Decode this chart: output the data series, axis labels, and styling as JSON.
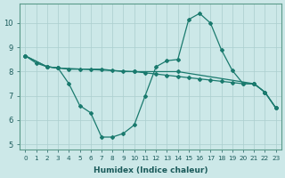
{
  "xlabel": "Humidex (Indice chaleur)",
  "ylabel": "",
  "bg_color": "#cce8e8",
  "grid_color": "#aacece",
  "line_color": "#1a7a6e",
  "xlim": [
    -0.5,
    23.5
  ],
  "ylim": [
    4.8,
    10.8
  ],
  "xticks": [
    0,
    1,
    2,
    3,
    4,
    5,
    6,
    7,
    8,
    9,
    10,
    11,
    12,
    13,
    14,
    15,
    16,
    17,
    18,
    19,
    20,
    21,
    22,
    23
  ],
  "yticks": [
    5,
    6,
    7,
    8,
    9,
    10
  ],
  "line1_x": [
    0,
    1,
    2,
    3,
    4,
    5,
    6,
    7,
    8,
    9,
    10,
    11,
    12,
    13,
    14,
    15,
    16,
    17,
    18,
    19,
    20,
    21,
    22,
    23
  ],
  "line1_y": [
    8.65,
    8.35,
    8.2,
    8.15,
    7.5,
    6.6,
    6.3,
    5.3,
    5.3,
    5.45,
    5.8,
    7.0,
    8.2,
    8.45,
    8.5,
    10.15,
    10.4,
    10.0,
    8.9,
    8.05,
    7.5,
    7.5,
    7.15,
    6.5
  ],
  "line2_x": [
    0,
    2,
    3,
    4,
    5,
    6,
    7,
    8,
    9,
    10,
    11,
    12,
    13,
    14,
    15,
    16,
    17,
    18,
    19,
    20,
    21,
    22,
    23
  ],
  "line2_y": [
    8.65,
    8.2,
    8.15,
    8.1,
    8.1,
    8.1,
    8.1,
    8.05,
    8.0,
    8.0,
    7.95,
    7.9,
    7.85,
    7.8,
    7.75,
    7.7,
    7.65,
    7.6,
    7.55,
    7.5,
    7.5,
    7.15,
    6.5
  ],
  "line3_x": [
    0,
    2,
    3,
    10,
    14,
    21,
    22,
    23
  ],
  "line3_y": [
    8.65,
    8.2,
    8.15,
    8.0,
    8.0,
    7.5,
    7.15,
    6.5
  ]
}
